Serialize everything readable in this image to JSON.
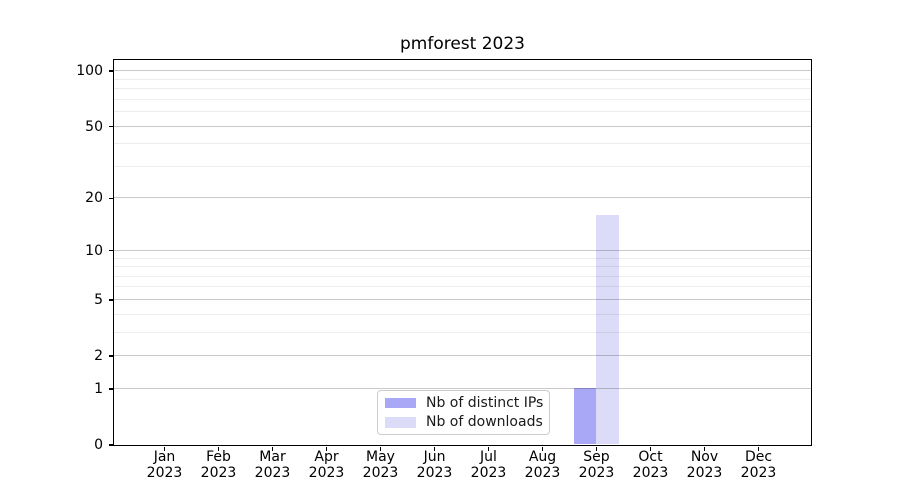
{
  "figure": {
    "background": "#ffffff"
  },
  "chart_data": {
    "type": "bar",
    "title": "pmforest 2023",
    "xlabel": "",
    "ylabel": "",
    "months": [
      "Jan",
      "Feb",
      "Mar",
      "Apr",
      "May",
      "Jun",
      "Jul",
      "Aug",
      "Sep",
      "Oct",
      "Nov",
      "Dec"
    ],
    "x_year": "2023",
    "categories": [
      "Jan 2023",
      "Feb 2023",
      "Mar 2023",
      "Apr 2023",
      "May 2023",
      "Jun 2023",
      "Jul 2023",
      "Aug 2023",
      "Sep 2023",
      "Oct 2023",
      "Nov 2023",
      "Dec 2023"
    ],
    "series": [
      {
        "name": "Nb of distinct IPs",
        "color": "#a8a8f7",
        "values": [
          0,
          0,
          0,
          0,
          0,
          0,
          0,
          0,
          1,
          0,
          0,
          0
        ]
      },
      {
        "name": "Nb of downloads",
        "color": "#dcdcf9",
        "values": [
          0,
          0,
          0,
          0,
          0,
          0,
          0,
          0,
          16,
          0,
          0,
          0
        ]
      }
    ],
    "yscale": "log1p",
    "ylim": [
      0,
      115
    ],
    "yticks": [
      0,
      1,
      2,
      5,
      10,
      20,
      50,
      100
    ],
    "yminor_gridlines": [
      3,
      4,
      6,
      7,
      8,
      9,
      30,
      40,
      60,
      70,
      80,
      90
    ],
    "grid": true,
    "legend": {
      "position": "lower center",
      "entries": [
        "Nb of distinct IPs",
        "Nb of downloads"
      ]
    },
    "axis_color": "#000000",
    "major_grid_color": "#c9c9c9",
    "minor_grid_color": "#ededed"
  }
}
